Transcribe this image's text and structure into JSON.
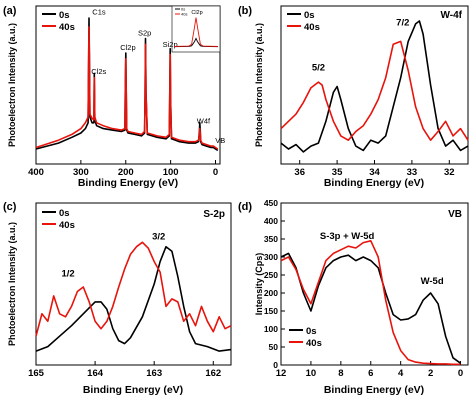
{
  "colors": {
    "series_0s": "#000000",
    "series_40s": "#e8140c",
    "inset_bg": "#ffffff"
  },
  "chart_data": [
    {
      "panel": "(a)",
      "type": "line",
      "xlabel": "Binding Energy (eV)",
      "ylabel": "Photoelectron Intensity (a.u.)",
      "xlim": [
        400,
        -10
      ],
      "ylim": [
        0,
        100
      ],
      "xticks": [
        400,
        300,
        200,
        100,
        0
      ],
      "legend": [
        "0s",
        "40s"
      ],
      "legend_position": "top-left",
      "annotations": [
        {
          "text": "C1s",
          "x": 279,
          "y": 97
        },
        {
          "text": "Cl2s",
          "x": 268,
          "y": 59
        },
        {
          "text": "Cl2p",
          "x": 199,
          "y": 72
        },
        {
          "text": "S2p",
          "x": 155,
          "y": 82
        },
        {
          "text": "Si2p",
          "x": 100,
          "y": 74
        },
        {
          "text": "W4f",
          "x": 24,
          "y": 22
        },
        {
          "text": "VB",
          "x": 5,
          "y": 10
        }
      ],
      "series": [
        {
          "name": "0s",
          "x": [
            400,
            350,
            320,
            300,
            290,
            284,
            283,
            282,
            281,
            280,
            275,
            271,
            270,
            269,
            265,
            250,
            230,
            210,
            202,
            201,
            200,
            199,
            198,
            195,
            180,
            165,
            158,
            157,
            156,
            155,
            152,
            130,
            110,
            103,
            102,
            101,
            100,
            98,
            80,
            60,
            45,
            38,
            36,
            35,
            34,
            33,
            30,
            20,
            10,
            5,
            0,
            -5
          ],
          "y": [
            6,
            10,
            14,
            17,
            20,
            24,
            55,
            96,
            70,
            28,
            24,
            24,
            58,
            26,
            22,
            20,
            19,
            18,
            19,
            48,
            72,
            48,
            19,
            17,
            16,
            15,
            17,
            45,
            82,
            45,
            16,
            14,
            13,
            15,
            40,
            75,
            40,
            13,
            11,
            10,
            10,
            11,
            18,
            24,
            18,
            11,
            9,
            8,
            7,
            7,
            6,
            5
          ]
        },
        {
          "name": "40s",
          "x": [
            400,
            350,
            320,
            300,
            290,
            284,
            283,
            282,
            281,
            280,
            275,
            271,
            270,
            269,
            265,
            250,
            230,
            210,
            202,
            201,
            200,
            199,
            198,
            195,
            180,
            165,
            158,
            157,
            156,
            155,
            152,
            130,
            110,
            103,
            102,
            101,
            100,
            98,
            80,
            60,
            45,
            38,
            36,
            35,
            34,
            33,
            30,
            20,
            10,
            5,
            0,
            -5
          ],
          "y": [
            7,
            12,
            16,
            20,
            24,
            28,
            55,
            90,
            66,
            30,
            27,
            26,
            55,
            28,
            24,
            22,
            20,
            19,
            20,
            46,
            68,
            46,
            20,
            18,
            17,
            16,
            18,
            43,
            78,
            43,
            17,
            15,
            14,
            16,
            38,
            71,
            38,
            14,
            12,
            11,
            11,
            12,
            16,
            20,
            16,
            12,
            10,
            9,
            8,
            8,
            7,
            6
          ]
        }
      ],
      "inset": {
        "label": "Cl2p",
        "legend": [
          "0s",
          "40s"
        ],
        "x": [
          215,
          205,
          203,
          201,
          200,
          199,
          197,
          195,
          185
        ],
        "series": [
          {
            "name": "0s",
            "y": [
              4,
              5,
              7,
              20,
              30,
              20,
              7,
              5,
              4
            ]
          },
          {
            "name": "40s",
            "y": [
              5,
              6,
              12,
              65,
              95,
              65,
              12,
              6,
              5
            ]
          }
        ]
      }
    },
    {
      "panel": "(b)",
      "title": "W-4f",
      "type": "line",
      "xlabel": "Binding Energy (eV)",
      "ylabel": "Photoelectron Intensity (a.u.)",
      "xlim": [
        36.5,
        31.5
      ],
      "ylim": [
        0,
        100
      ],
      "xticks": [
        36,
        35,
        34,
        33,
        32
      ],
      "legend": [
        "0s",
        "40s"
      ],
      "legend_position": "top-left",
      "annotations": [
        {
          "text": "5/2",
          "x": 35.3,
          "y": 60
        },
        {
          "text": "7/2",
          "x": 33.1,
          "y": 91
        }
      ],
      "series": [
        {
          "name": "0s",
          "x": [
            36.5,
            36.3,
            36.1,
            35.9,
            35.7,
            35.5,
            35.3,
            35.1,
            35.0,
            34.9,
            34.7,
            34.5,
            34.3,
            34.1,
            33.9,
            33.7,
            33.5,
            33.3,
            33.1,
            32.9,
            32.8,
            32.7,
            32.5,
            32.3,
            32.1,
            31.9,
            31.7,
            31.5
          ],
          "y": [
            10,
            6,
            9,
            4,
            8,
            10,
            25,
            45,
            49,
            40,
            20,
            8,
            5,
            12,
            10,
            15,
            35,
            55,
            80,
            92,
            94,
            85,
            50,
            20,
            8,
            12,
            5,
            8
          ]
        },
        {
          "name": "40s",
          "x": [
            36.5,
            36.3,
            36.1,
            35.9,
            35.7,
            35.5,
            35.4,
            35.3,
            35.1,
            34.9,
            34.7,
            34.5,
            34.3,
            34.1,
            33.9,
            33.7,
            33.5,
            33.3,
            33.1,
            32.9,
            32.7,
            32.5,
            32.3,
            32.1,
            31.9,
            31.7,
            31.5
          ],
          "y": [
            20,
            25,
            30,
            38,
            48,
            52,
            50,
            40,
            25,
            15,
            12,
            18,
            22,
            30,
            40,
            55,
            78,
            80,
            60,
            35,
            20,
            12,
            18,
            25,
            15,
            20,
            12
          ]
        }
      ]
    },
    {
      "panel": "(c)",
      "title": "S-2p",
      "type": "line",
      "xlabel": "Binding Energy (eV)",
      "ylabel": "Photoelectron Intensity (a.u.)",
      "xlim": [
        165,
        161.7
      ],
      "ylim": [
        0,
        100
      ],
      "xticks": [
        165,
        164,
        163,
        162
      ],
      "legend": [
        "0s",
        "40s"
      ],
      "legend_position": "top-left",
      "annotations": [
        {
          "text": "1/2",
          "x": 164.4,
          "y": 55
        },
        {
          "text": "3/2",
          "x": 162.9,
          "y": 80
        }
      ],
      "series": [
        {
          "name": "0s",
          "x": [
            165,
            164.8,
            164.6,
            164.4,
            164.2,
            164.0,
            163.9,
            163.8,
            163.7,
            163.6,
            163.5,
            163.4,
            163.2,
            163.0,
            162.9,
            162.8,
            162.7,
            162.6,
            162.5,
            162.4,
            162.3,
            162.1,
            161.9,
            161.7
          ],
          "y": [
            5,
            8,
            15,
            22,
            30,
            38,
            38,
            33,
            20,
            12,
            10,
            14,
            28,
            50,
            65,
            75,
            72,
            55,
            35,
            18,
            10,
            8,
            5,
            6
          ]
        },
        {
          "name": "40s",
          "x": [
            165,
            164.9,
            164.8,
            164.7,
            164.6,
            164.5,
            164.4,
            164.3,
            164.2,
            164.1,
            164.0,
            163.9,
            163.8,
            163.7,
            163.6,
            163.5,
            163.4,
            163.3,
            163.2,
            163.1,
            163.0,
            162.9,
            162.8,
            162.7,
            162.6,
            162.5,
            162.4,
            162.3,
            162.2,
            162.1,
            162.0,
            161.9,
            161.8,
            161.7
          ],
          "y": [
            15,
            30,
            25,
            42,
            30,
            28,
            35,
            45,
            48,
            38,
            25,
            20,
            25,
            35,
            48,
            60,
            70,
            75,
            78,
            74,
            65,
            58,
            35,
            40,
            38,
            25,
            30,
            22,
            35,
            25,
            18,
            28,
            20,
            22
          ]
        }
      ]
    },
    {
      "panel": "(d)",
      "title": "VB",
      "type": "line",
      "xlabel": "Binding Energy (eV)",
      "ylabel": "Intensity (Cps)",
      "xlim": [
        12,
        -0.5
      ],
      "ylim": [
        0,
        450
      ],
      "xticks": [
        12,
        10,
        8,
        6,
        4,
        2,
        0
      ],
      "yticks": [
        0,
        50,
        100,
        150,
        200,
        250,
        300,
        350,
        400,
        450
      ],
      "legend": [
        "0s",
        "40s"
      ],
      "legend_position": "bottom-left",
      "annotations": [
        {
          "text": "S-3p + W-5d",
          "x": 9.0,
          "y": 350
        },
        {
          "text": "W-5d",
          "x": 2.0,
          "y": 225
        }
      ],
      "series": [
        {
          "name": "0s",
          "x": [
            12,
            11.5,
            11,
            10.5,
            10,
            9.5,
            9,
            8.5,
            8,
            7.5,
            7,
            6.5,
            6,
            5.5,
            5,
            4.5,
            4,
            3.5,
            3,
            2.5,
            2,
            1.5,
            1,
            0.5,
            0
          ],
          "y": [
            300,
            310,
            270,
            200,
            150,
            220,
            270,
            290,
            300,
            305,
            290,
            300,
            290,
            270,
            200,
            140,
            125,
            128,
            140,
            180,
            200,
            170,
            80,
            20,
            5
          ]
        },
        {
          "name": "40s",
          "x": [
            12,
            11.5,
            11,
            10.5,
            10,
            9.5,
            9,
            8.5,
            8,
            7.5,
            7,
            6.5,
            6,
            5.5,
            5,
            4.5,
            4,
            3.5,
            3,
            2.5,
            2,
            1.5,
            1,
            0.5,
            0
          ],
          "y": [
            290,
            300,
            265,
            210,
            170,
            230,
            290,
            310,
            320,
            330,
            325,
            340,
            345,
            300,
            180,
            90,
            40,
            15,
            8,
            5,
            4,
            3,
            3,
            2,
            2
          ]
        }
      ]
    }
  ]
}
